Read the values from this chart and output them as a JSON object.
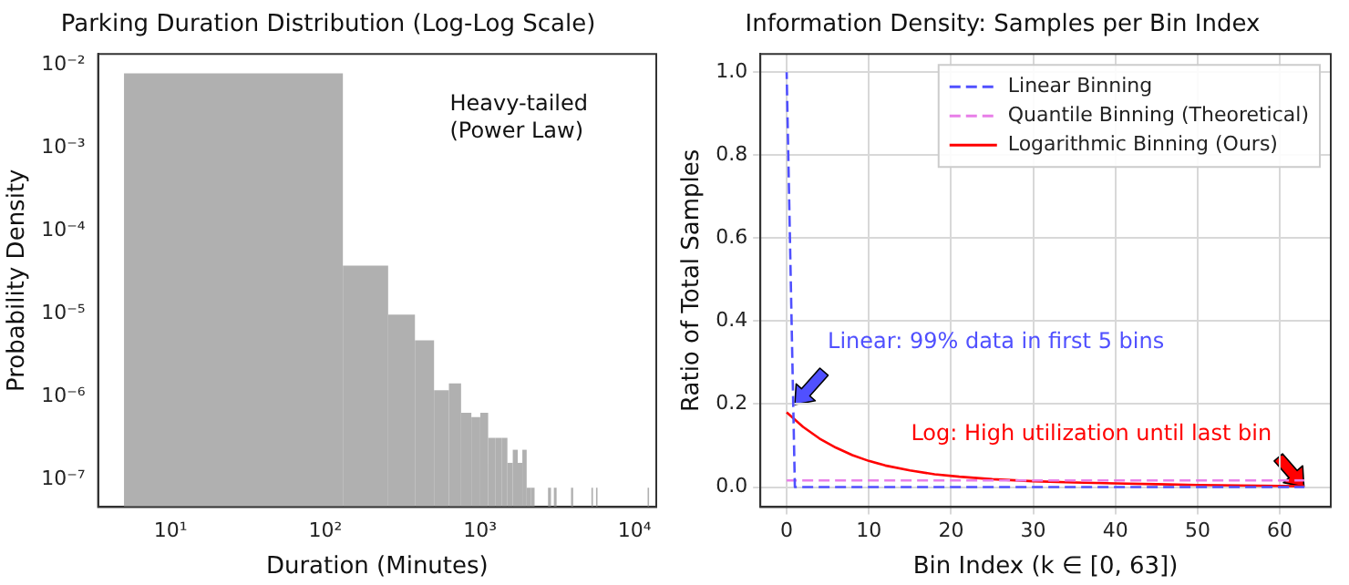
{
  "chart_data": [
    {
      "type": "histogram",
      "title": "Parking Duration Distribution (Log-Log Scale)",
      "xlabel": "Duration (Minutes)",
      "ylabel": "Probability Density",
      "log": "xy",
      "color": "#b0b0b0",
      "bins": [
        5,
        130,
        255,
        380,
        505,
        630,
        755,
        880,
        1005,
        1130,
        1255,
        1380,
        1505,
        1630,
        1755,
        1880,
        2005,
        2130,
        2255,
        2755,
        2880,
        3005,
        3130,
        3880,
        4005,
        5255,
        5380,
        5630,
        5755,
        12130,
        12255
      ],
      "values": [
        0.0079,
        3.8e-05,
        9.8e-06,
        4.8e-06,
        1.2e-06,
        1.45e-06,
        6.4e-07,
        5.7e-07,
        6.4e-07,
        3.2e-07,
        3.2e-07,
        3.2e-07,
        1.6e-07,
        2.3e-07,
        1.6e-07,
        2.3e-07,
        8e-08,
        8e-08,
        null,
        8e-08,
        null,
        8e-08,
        null,
        8e-08,
        null,
        8e-08,
        null,
        8e-08,
        null,
        8e-08
      ],
      "xlim": [
        3.4,
        13800
      ],
      "ylim": [
        4.7e-08,
        0.0135
      ],
      "xticks": [
        {
          "value": 10,
          "label": "10¹"
        },
        {
          "value": 100,
          "label": "10²"
        },
        {
          "value": 1000,
          "label": "10³"
        },
        {
          "value": 10000,
          "label": "10⁴"
        }
      ],
      "yticks": [
        {
          "value": 1e-07,
          "label": "10⁻⁷"
        },
        {
          "value": 1e-06,
          "label": "10⁻⁶"
        },
        {
          "value": 1e-05,
          "label": "10⁻⁵"
        },
        {
          "value": 0.0001,
          "label": "10⁻⁴"
        },
        {
          "value": 0.001,
          "label": "10⁻³"
        },
        {
          "value": 0.01,
          "label": "10⁻²"
        }
      ],
      "annotations": [
        "Heavy-tailed\n(Power Law)"
      ]
    },
    {
      "type": "line",
      "title": "Information Density: Samples per Bin Index",
      "xlabel": "Bin Index (k ∈ [0, 63])",
      "ylabel": "Ratio of Total Samples",
      "grid": true,
      "legend": "top right",
      "xlim": [
        -3.2,
        66.2
      ],
      "ylim": [
        -0.048,
        1.044
      ],
      "xticks": [
        0,
        10,
        20,
        30,
        40,
        50,
        60
      ],
      "yticks": [
        {
          "value": 0,
          "label": "0.0"
        },
        {
          "value": 0.2,
          "label": "0.2"
        },
        {
          "value": 0.4,
          "label": "0.4"
        },
        {
          "value": 0.6,
          "label": "0.6"
        },
        {
          "value": 0.8,
          "label": "0.8"
        },
        {
          "value": 1,
          "label": "1.0"
        }
      ],
      "series": [
        {
          "name": "Linear Binning",
          "color": "#5050ff",
          "line_style": "dashed",
          "x": [
            0,
            1,
            63
          ],
          "values": [
            1.0,
            0.0,
            0.0
          ]
        },
        {
          "name": "Quantile Binning (Theoretical)",
          "color": "#e87ee8",
          "line_style": "dashed",
          "x": [
            0,
            63
          ],
          "values": [
            0.016,
            0.016
          ]
        },
        {
          "name": "Logarithmic Binning (Ours)",
          "color": "#ff0000",
          "line_style": "solid",
          "x": [
            0,
            2,
            4,
            6,
            8,
            10,
            12,
            15,
            18,
            21,
            25,
            30,
            35,
            40,
            45,
            50,
            55,
            60,
            63
          ],
          "values": [
            0.18,
            0.145,
            0.117,
            0.095,
            0.077,
            0.063,
            0.052,
            0.04,
            0.031,
            0.025,
            0.019,
            0.014,
            0.011,
            0.009,
            0.007,
            0.005,
            0.004,
            0.003,
            0.002
          ]
        }
      ],
      "annotations": [
        {
          "text": "Linear: 99% data in first 5 bins",
          "x": 1,
          "y": 0.2
        },
        {
          "text": "Log: High utilization until last bin",
          "x": 63,
          "y": 0.0
        }
      ]
    }
  ]
}
